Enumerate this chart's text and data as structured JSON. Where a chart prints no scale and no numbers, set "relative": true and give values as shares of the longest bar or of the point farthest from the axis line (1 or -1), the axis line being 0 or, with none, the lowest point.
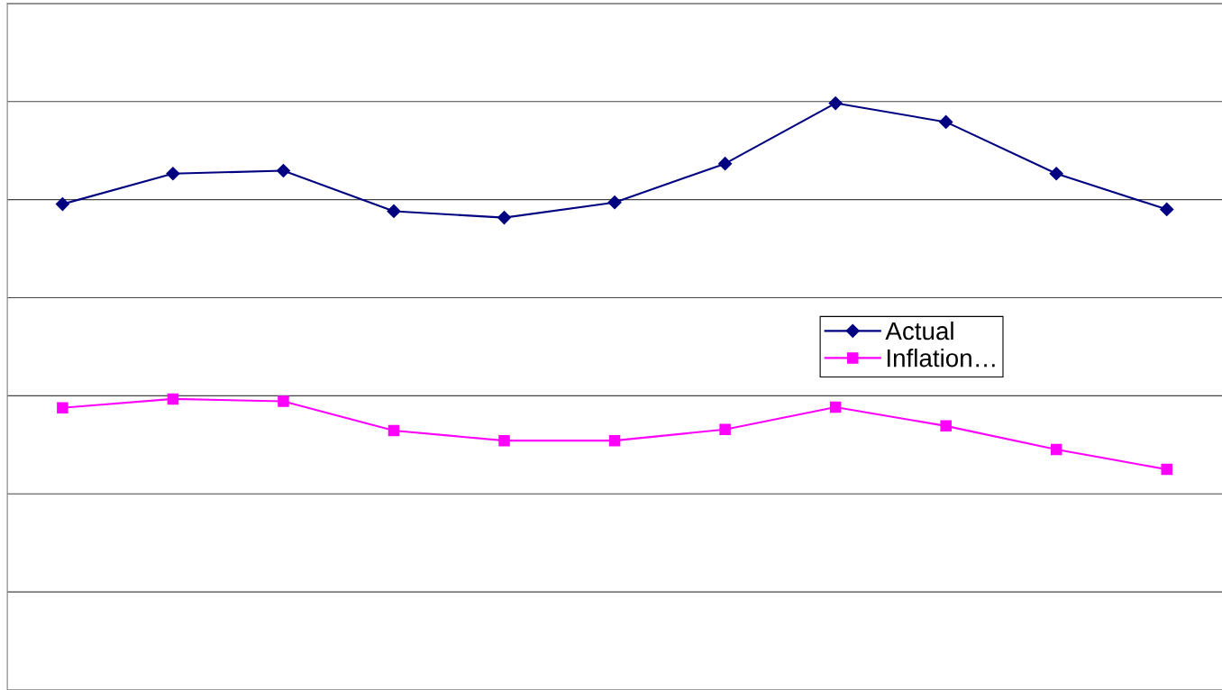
{
  "chart_data": {
    "type": "line",
    "relative": true,
    "categories": [
      null,
      null,
      null,
      null,
      null,
      null,
      null,
      null,
      null,
      null,
      null
    ],
    "series": [
      {
        "name": "Actual",
        "color": "#000080",
        "marker": "diamond",
        "values": [
          0.828,
          0.88,
          0.885,
          0.816,
          0.805,
          0.831,
          0.897,
          1.0,
          0.968,
          0.88,
          0.819
        ]
      },
      {
        "name": "Inflation…",
        "color": "#ff00ff",
        "marker": "square",
        "values": [
          0.481,
          0.496,
          0.492,
          0.442,
          0.425,
          0.425,
          0.444,
          0.482,
          0.45,
          0.41,
          0.376
        ]
      }
    ],
    "grid": "y",
    "legend": "center right",
    "line_style": "solid"
  }
}
